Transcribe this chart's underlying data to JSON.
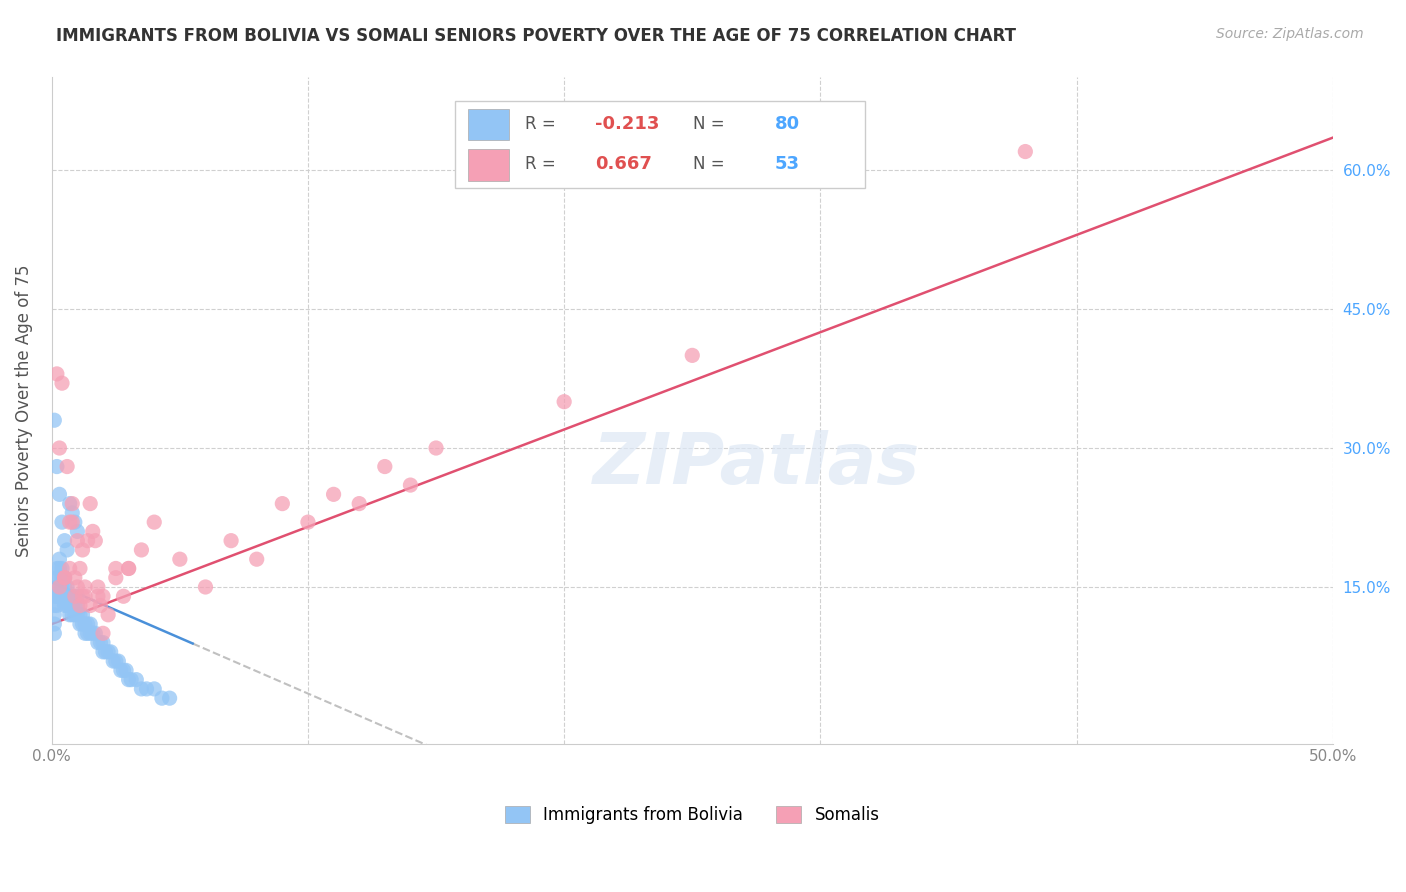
{
  "title": "IMMIGRANTS FROM BOLIVIA VS SOMALI SENIORS POVERTY OVER THE AGE OF 75 CORRELATION CHART",
  "source": "Source: ZipAtlas.com",
  "ylabel": "Seniors Poverty Over the Age of 75",
  "xlim": [
    0.0,
    0.5
  ],
  "ylim": [
    -0.02,
    0.7
  ],
  "bolivia_R": "-0.213",
  "bolivia_N": "80",
  "somali_R": "0.667",
  "somali_N": "53",
  "bolivia_color": "#93c5f5",
  "somali_color": "#f5a0b5",
  "bolivia_line_color": "#4a90d9",
  "somali_line_color": "#e05070",
  "dashed_line_color": "#c0c0c0",
  "watermark": "ZIPatlas",
  "background_color": "#ffffff",
  "grid_color": "#d0d0d0",
  "bolivia_x": [
    0.001,
    0.001,
    0.001,
    0.001,
    0.001,
    0.002,
    0.002,
    0.002,
    0.002,
    0.002,
    0.003,
    0.003,
    0.003,
    0.003,
    0.003,
    0.004,
    0.004,
    0.004,
    0.004,
    0.005,
    0.005,
    0.005,
    0.005,
    0.006,
    0.006,
    0.006,
    0.007,
    0.007,
    0.007,
    0.008,
    0.008,
    0.008,
    0.009,
    0.009,
    0.01,
    0.01,
    0.01,
    0.011,
    0.011,
    0.012,
    0.012,
    0.013,
    0.013,
    0.014,
    0.014,
    0.015,
    0.015,
    0.016,
    0.017,
    0.018,
    0.019,
    0.02,
    0.02,
    0.021,
    0.022,
    0.023,
    0.024,
    0.025,
    0.026,
    0.027,
    0.028,
    0.029,
    0.03,
    0.031,
    0.033,
    0.035,
    0.037,
    0.04,
    0.043,
    0.046,
    0.001,
    0.002,
    0.003,
    0.004,
    0.005,
    0.006,
    0.007,
    0.008,
    0.009,
    0.01
  ],
  "bolivia_y": [
    0.14,
    0.13,
    0.12,
    0.11,
    0.1,
    0.17,
    0.16,
    0.15,
    0.14,
    0.13,
    0.18,
    0.17,
    0.16,
    0.15,
    0.14,
    0.17,
    0.16,
    0.15,
    0.14,
    0.16,
    0.15,
    0.14,
    0.13,
    0.15,
    0.14,
    0.13,
    0.14,
    0.13,
    0.12,
    0.14,
    0.13,
    0.12,
    0.13,
    0.12,
    0.14,
    0.13,
    0.12,
    0.12,
    0.11,
    0.12,
    0.11,
    0.11,
    0.1,
    0.11,
    0.1,
    0.11,
    0.1,
    0.1,
    0.1,
    0.09,
    0.09,
    0.09,
    0.08,
    0.08,
    0.08,
    0.08,
    0.07,
    0.07,
    0.07,
    0.06,
    0.06,
    0.06,
    0.05,
    0.05,
    0.05,
    0.04,
    0.04,
    0.04,
    0.03,
    0.03,
    0.33,
    0.28,
    0.25,
    0.22,
    0.2,
    0.19,
    0.24,
    0.23,
    0.22,
    0.21
  ],
  "somali_x": [
    0.002,
    0.003,
    0.004,
    0.005,
    0.006,
    0.007,
    0.008,
    0.009,
    0.01,
    0.011,
    0.012,
    0.013,
    0.014,
    0.015,
    0.016,
    0.017,
    0.018,
    0.019,
    0.02,
    0.025,
    0.03,
    0.035,
    0.04,
    0.05,
    0.06,
    0.07,
    0.08,
    0.09,
    0.1,
    0.11,
    0.12,
    0.13,
    0.14,
    0.15,
    0.2,
    0.25,
    0.003,
    0.005,
    0.007,
    0.009,
    0.011,
    0.013,
    0.015,
    0.02,
    0.025,
    0.03,
    0.008,
    0.01,
    0.012,
    0.018,
    0.022,
    0.028,
    0.38
  ],
  "somali_y": [
    0.38,
    0.3,
    0.37,
    0.16,
    0.28,
    0.17,
    0.22,
    0.16,
    0.15,
    0.17,
    0.14,
    0.14,
    0.2,
    0.24,
    0.21,
    0.2,
    0.15,
    0.13,
    0.1,
    0.17,
    0.17,
    0.19,
    0.22,
    0.18,
    0.15,
    0.2,
    0.18,
    0.24,
    0.22,
    0.25,
    0.24,
    0.28,
    0.26,
    0.3,
    0.35,
    0.4,
    0.15,
    0.16,
    0.22,
    0.14,
    0.13,
    0.15,
    0.13,
    0.14,
    0.16,
    0.17,
    0.24,
    0.2,
    0.19,
    0.14,
    0.12,
    0.14,
    0.62
  ]
}
